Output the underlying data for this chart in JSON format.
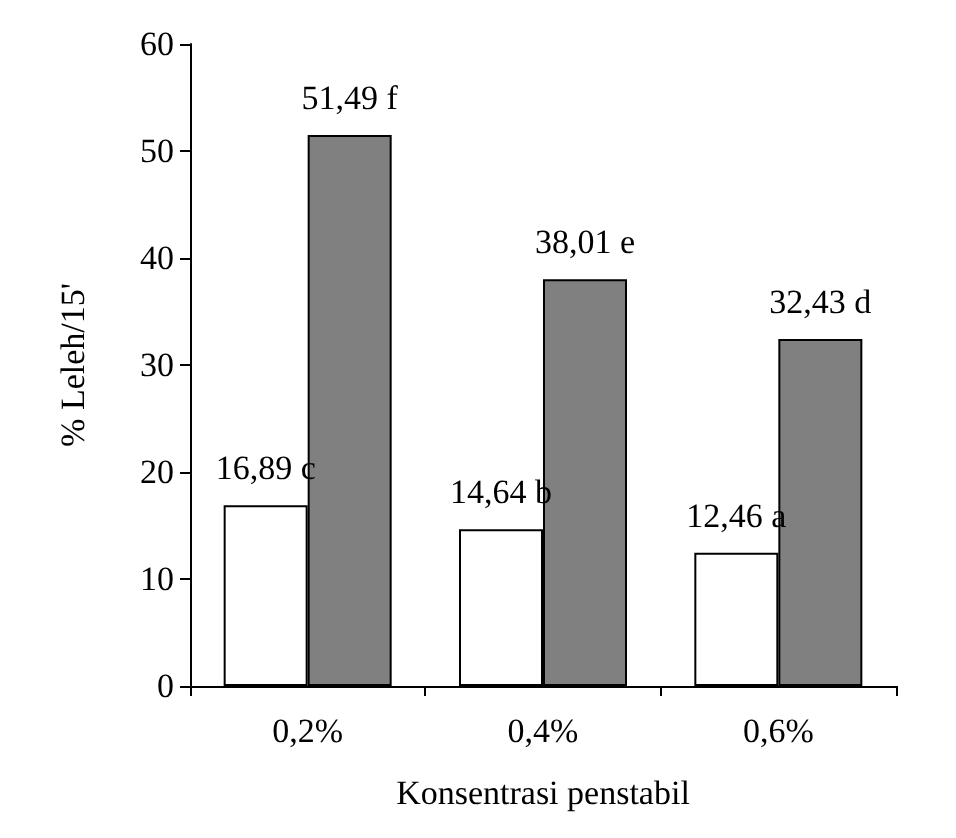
{
  "chart_data": {
    "type": "bar",
    "xlabel": "Konsentrasi penstabil",
    "ylabel": "% Leleh/15'",
    "categories": [
      "0,2%",
      "0,4%",
      "0,6%"
    ],
    "series": [
      {
        "color": "#ffffff",
        "values": [
          16.89,
          14.64,
          12.46
        ],
        "value_labels": [
          "16,89 c",
          "14,64 b",
          "12,46 a"
        ]
      },
      {
        "color": "#808080",
        "values": [
          51.49,
          38.01,
          32.43
        ],
        "value_labels": [
          "51,49 f",
          "38,01 e",
          "32,43 d"
        ]
      }
    ],
    "ylim": [
      0,
      60
    ],
    "yticks": [
      0,
      10,
      20,
      30,
      40,
      50,
      60
    ],
    "grid": false
  }
}
